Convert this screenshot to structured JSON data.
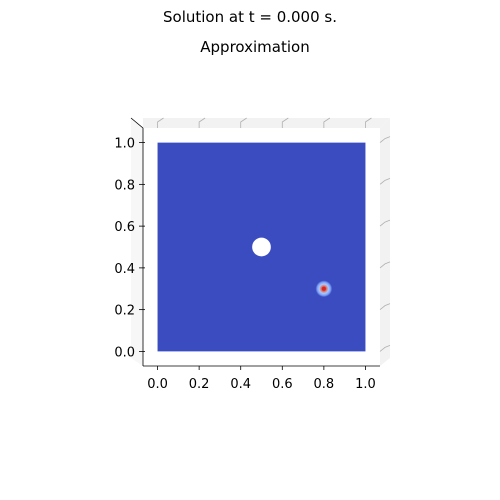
{
  "suptitle": "Solution at t = 0.000 s.",
  "chart_data": {
    "type": "heatmap",
    "title": "Approximation",
    "projection": "3d-surface-viewed-from-top",
    "xlim": [
      -0.07,
      1.07
    ],
    "ylim": [
      -0.07,
      1.07
    ],
    "x_ticks": [
      0.0,
      0.2,
      0.4,
      0.6,
      0.8,
      1.0
    ],
    "x_tick_labels": [
      "0.0",
      "0.2",
      "0.4",
      "0.6",
      "0.8",
      "1.0"
    ],
    "y_ticks": [
      0.0,
      0.2,
      0.4,
      0.6,
      0.8,
      1.0
    ],
    "y_tick_labels": [
      "0.0",
      "0.2",
      "0.4",
      "0.6",
      "0.8",
      "1.0"
    ],
    "domain": {
      "x": [
        0.0,
        1.0
      ],
      "y": [
        0.0,
        1.0
      ]
    },
    "hole": {
      "center": [
        0.5,
        0.5
      ],
      "radius": 0.045
    },
    "source": {
      "center": [
        0.8,
        0.3
      ],
      "radius": 0.04,
      "peak_color": "#d62728"
    },
    "colormap": "coolwarm",
    "base_color": "#3b4cc0",
    "pane_color": "#f2f2f2",
    "grid": true
  }
}
